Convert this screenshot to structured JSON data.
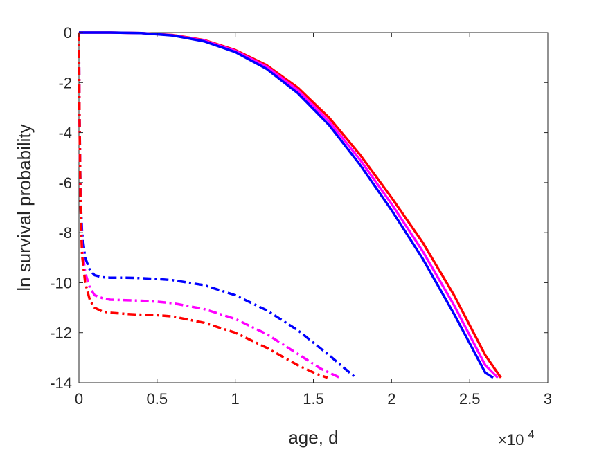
{
  "chart_data": {
    "type": "line",
    "title": "",
    "xlabel": "age, d",
    "ylabel": "ln survival probability",
    "x_exponent_label": "×10",
    "x_exponent_power": "4",
    "xlim": [
      0,
      30000
    ],
    "ylim": [
      -14,
      0
    ],
    "x_ticks": [
      0,
      5000,
      10000,
      15000,
      20000,
      25000,
      30000
    ],
    "x_tick_labels": [
      "0",
      "0.5",
      "1",
      "1.5",
      "2",
      "2.5",
      "3"
    ],
    "y_ticks": [
      0,
      -2,
      -4,
      -6,
      -8,
      -10,
      -12,
      -14
    ],
    "y_tick_labels": [
      "0",
      "-2",
      "-4",
      "-6",
      "-8",
      "-10",
      "-12",
      "-14"
    ],
    "grid": false,
    "legend": "none",
    "series": [
      {
        "color": "#ff0000",
        "style": "solid",
        "x": [
          0,
          2000,
          4000,
          6000,
          8000,
          10000,
          12000,
          14000,
          16000,
          18000,
          20000,
          22000,
          24000,
          26000,
          27000
        ],
        "y": [
          0,
          0,
          -0.02,
          -0.1,
          -0.3,
          -0.7,
          -1.3,
          -2.2,
          -3.4,
          -4.9,
          -6.6,
          -8.4,
          -10.5,
          -12.9,
          -13.8
        ]
      },
      {
        "color": "#ff00ff",
        "style": "solid",
        "x": [
          0,
          2000,
          4000,
          6000,
          8000,
          10000,
          12000,
          14000,
          16000,
          18000,
          20000,
          22000,
          24000,
          26000,
          26800
        ],
        "y": [
          0,
          0,
          -0.02,
          -0.11,
          -0.32,
          -0.73,
          -1.36,
          -2.3,
          -3.55,
          -5.1,
          -6.85,
          -8.75,
          -10.9,
          -13.3,
          -13.8
        ]
      },
      {
        "color": "#0000ff",
        "style": "solid",
        "x": [
          0,
          2000,
          4000,
          6000,
          8000,
          10000,
          12000,
          14000,
          16000,
          18000,
          20000,
          22000,
          24000,
          26000,
          26500
        ],
        "y": [
          0,
          0,
          -0.02,
          -0.12,
          -0.35,
          -0.78,
          -1.45,
          -2.42,
          -3.7,
          -5.3,
          -7.1,
          -9.05,
          -11.25,
          -13.6,
          -13.8
        ]
      },
      {
        "color": "#0000ff",
        "style": "dashdot",
        "x": [
          0,
          30,
          100,
          200,
          400,
          700,
          1000,
          1500,
          2000,
          3000,
          4000,
          5000,
          6000,
          8000,
          10000,
          12000,
          14000,
          16000,
          17700
        ],
        "y": [
          0,
          -3,
          -6.5,
          -8,
          -9,
          -9.5,
          -9.7,
          -9.78,
          -9.8,
          -9.8,
          -9.82,
          -9.85,
          -9.9,
          -10.1,
          -10.5,
          -11.1,
          -11.9,
          -12.9,
          -13.8
        ]
      },
      {
        "color": "#ff00ff",
        "style": "dashdot",
        "x": [
          0,
          30,
          100,
          200,
          400,
          700,
          1000,
          1500,
          2000,
          3000,
          4000,
          5000,
          6000,
          8000,
          10000,
          12000,
          14000,
          15500,
          16700
        ],
        "y": [
          0,
          -3,
          -6.8,
          -8.6,
          -9.6,
          -10.2,
          -10.5,
          -10.62,
          -10.68,
          -10.7,
          -10.72,
          -10.76,
          -10.82,
          -11.05,
          -11.45,
          -12.05,
          -12.85,
          -13.45,
          -13.8
        ]
      },
      {
        "color": "#ff0000",
        "style": "dashdot",
        "x": [
          0,
          30,
          100,
          200,
          400,
          700,
          1000,
          1500,
          2000,
          3000,
          4000,
          5000,
          6000,
          8000,
          10000,
          12000,
          14000,
          15200,
          15900
        ],
        "y": [
          0,
          -3,
          -7,
          -8.9,
          -10,
          -10.7,
          -11,
          -11.15,
          -11.2,
          -11.25,
          -11.28,
          -11.3,
          -11.35,
          -11.6,
          -12,
          -12.6,
          -13.3,
          -13.65,
          -13.8
        ]
      }
    ]
  }
}
